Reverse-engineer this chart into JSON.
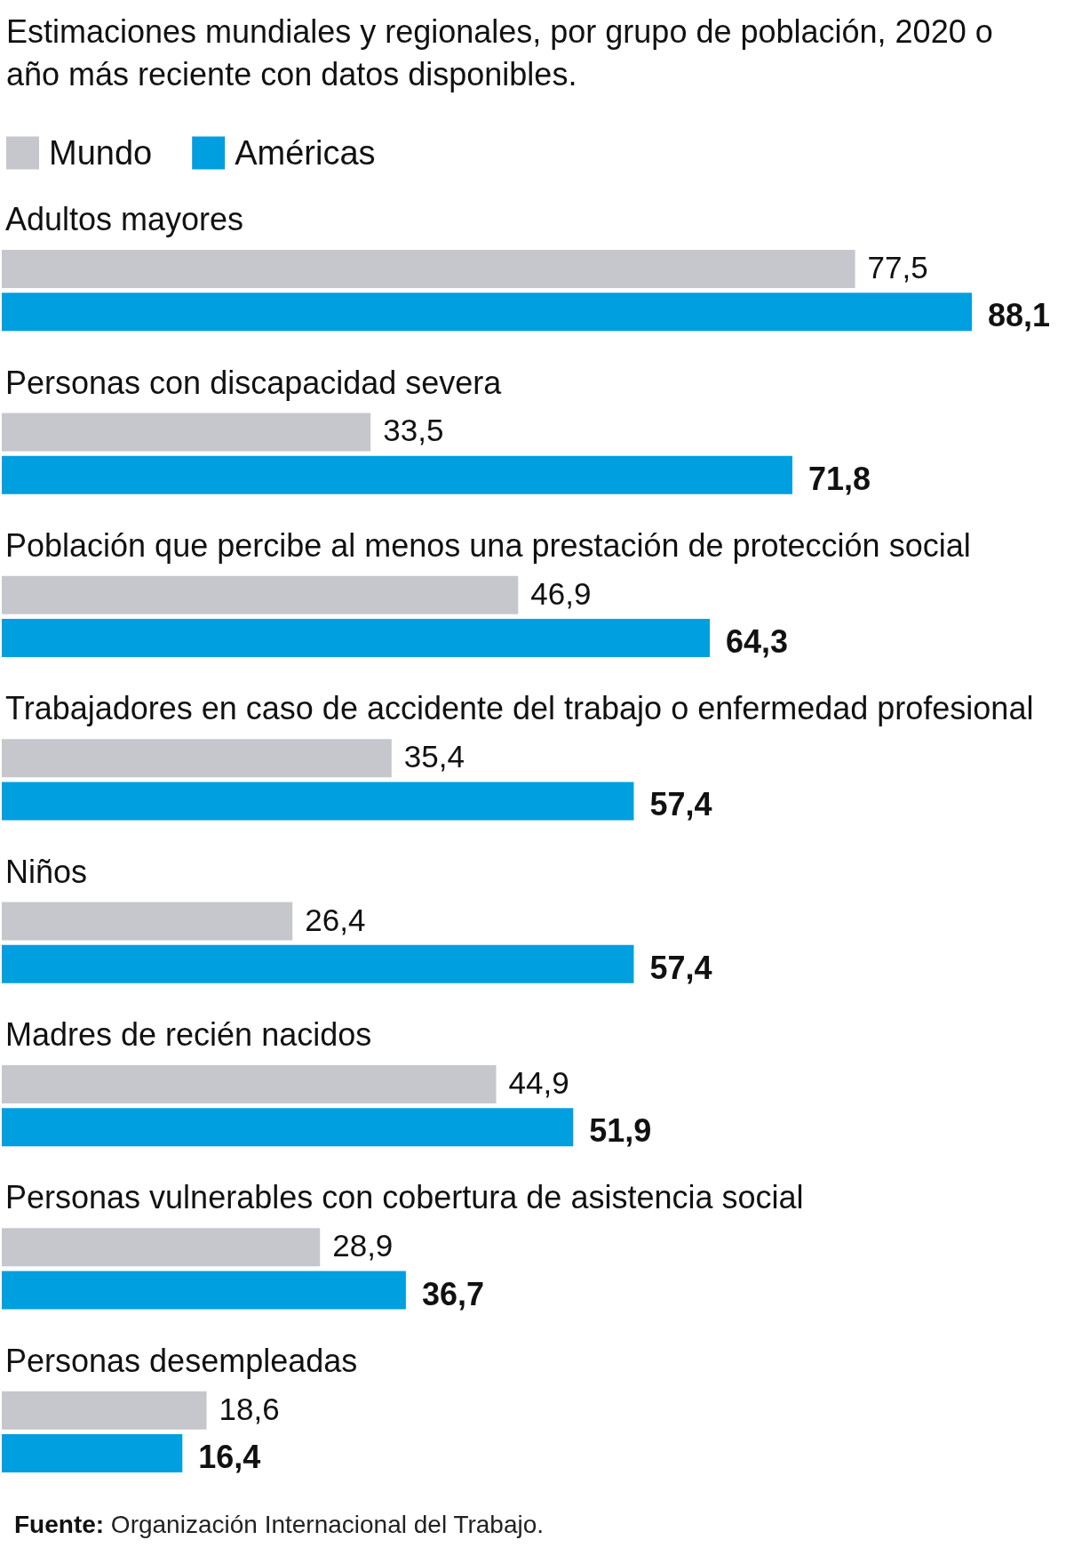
{
  "chart_data": {
    "type": "bar",
    "orientation": "horizontal",
    "title": "Estimaciones mundiales y regionales, por grupo de población, 2020 o año más reciente con datos disponibles.",
    "categories": [
      "Adultos mayores",
      "Personas con discapacidad severa",
      "Población que percibe al menos una prestación de protección social",
      "Trabajadores en caso de accidente del trabajo o enfermedad profesional",
      "Niños",
      "Madres de recién nacidos",
      "Personas vulnerables con cobertura de asistencia social",
      "Personas desempleadas"
    ],
    "series": [
      {
        "name": "Mundo",
        "color": "#c6c7cc",
        "values": [
          77.5,
          33.5,
          46.9,
          35.4,
          26.4,
          44.9,
          28.9,
          18.6
        ],
        "value_labels": [
          "77,5",
          "33,5",
          "46,9",
          "35,4",
          "26,4",
          "44,9",
          "28,9",
          "18,6"
        ]
      },
      {
        "name": "Américas",
        "color": "#009fdf",
        "values": [
          88.1,
          71.8,
          64.3,
          57.4,
          57.4,
          51.9,
          36.7,
          16.4
        ],
        "value_labels": [
          "88,1",
          "71,8",
          "64,3",
          "57,4",
          "57,4",
          "51,9",
          "36,7",
          "16,4"
        ]
      }
    ],
    "legend": "top left",
    "annotations": [
      "Fuente: Organización Internacional del Trabajo."
    ]
  }
}
